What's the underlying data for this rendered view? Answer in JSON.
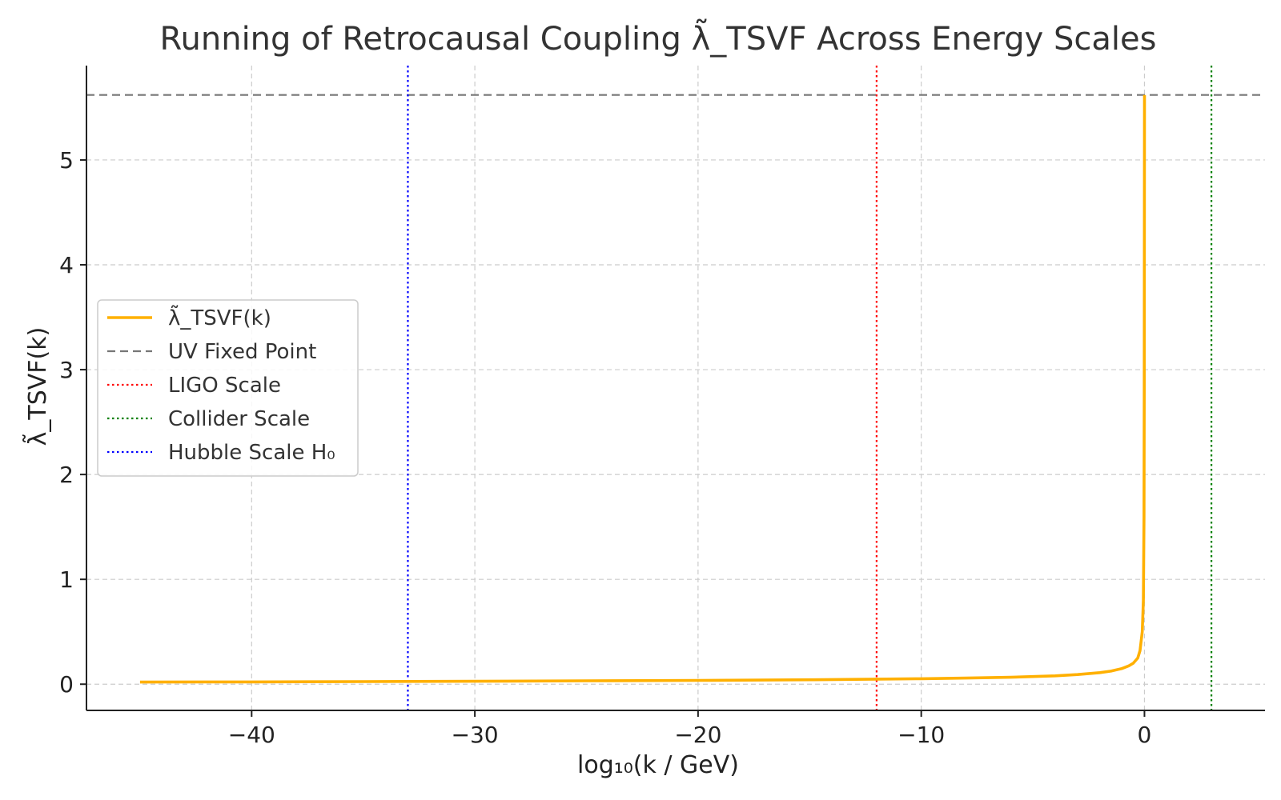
{
  "chart_data": {
    "type": "line",
    "title": "Running of Retrocausal Coupling λ̃_TSVF Across Energy Scales",
    "xlabel": "log₁₀(k / GeV)",
    "ylabel": "λ̃_TSVF(k)",
    "xlim": [
      -47.4,
      5.4
    ],
    "ylim": [
      -0.25,
      5.9
    ],
    "xticks": [
      -40,
      -30,
      -20,
      -10,
      0
    ],
    "xtick_labels": [
      "−40",
      "−30",
      "−20",
      "−10",
      "0"
    ],
    "yticks": [
      0,
      1,
      2,
      3,
      4,
      5
    ],
    "ytick_labels": [
      "0",
      "1",
      "2",
      "3",
      "4",
      "5"
    ],
    "grid": true,
    "legend_position": "center-left",
    "series": [
      {
        "name": "λ̃_TSVF(k)",
        "color": "#FFB000",
        "style": "solid",
        "x": [
          -45,
          -40,
          -35,
          -30,
          -25,
          -20,
          -15,
          -12,
          -10,
          -8,
          -6,
          -4,
          -3,
          -2,
          -1.5,
          -1,
          -0.7,
          -0.5,
          -0.3,
          -0.2,
          -0.1,
          -0.05,
          -0.02,
          -0.01,
          0
        ],
        "y": [
          0.02,
          0.022,
          0.025,
          0.028,
          0.032,
          0.036,
          0.042,
          0.048,
          0.052,
          0.058,
          0.066,
          0.08,
          0.092,
          0.11,
          0.125,
          0.15,
          0.175,
          0.2,
          0.25,
          0.32,
          0.5,
          0.8,
          1.6,
          2.8,
          5.62
        ]
      },
      {
        "name": "UV Fixed Point",
        "color": "#777777",
        "style": "dashed",
        "orientation": "horizontal",
        "value": 5.62
      },
      {
        "name": "LIGO Scale",
        "color": "#FF0000",
        "style": "dotted",
        "orientation": "vertical",
        "value": -12
      },
      {
        "name": "Collider Scale",
        "color": "#008000",
        "style": "dotted",
        "orientation": "vertical",
        "value": 3
      },
      {
        "name": "Hubble Scale H₀",
        "color": "#0000FF",
        "style": "dotted",
        "orientation": "vertical",
        "value": -33
      }
    ]
  }
}
